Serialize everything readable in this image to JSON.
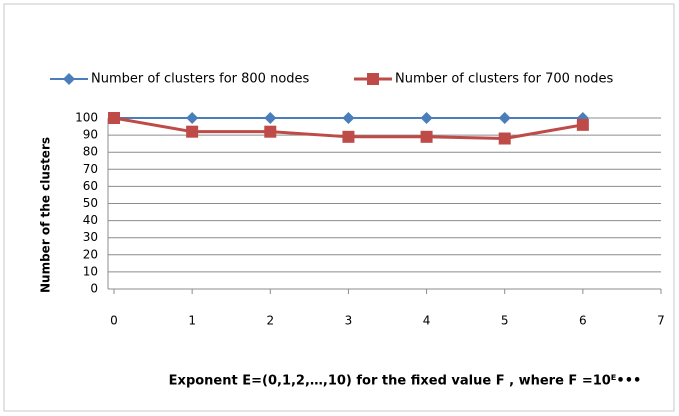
{
  "chart_data": {
    "type": "line",
    "y_label": "Number of the clusters",
    "x_label": "Exponent E=(0,1,2,…,10) for the fixed value F , where F =10ᴱ•••",
    "x": [
      0,
      1,
      2,
      3,
      4,
      5,
      6
    ],
    "series": [
      {
        "name": "Number of clusters for 800 nodes",
        "color": "#4a7ebb",
        "marker": "diamond",
        "values": [
          100,
          100,
          100,
          100,
          100,
          100,
          100
        ]
      },
      {
        "name": "Number of clusters for 700 nodes",
        "color": "#be4b48",
        "marker": "square",
        "values": [
          100,
          92,
          92,
          89,
          89,
          88,
          96
        ]
      }
    ],
    "xlim": [
      0,
      7
    ],
    "xticks": [
      0,
      1,
      2,
      3,
      4,
      5,
      6,
      7
    ],
    "ylim": [
      0,
      100
    ],
    "yticks": [
      0,
      10,
      20,
      30,
      40,
      50,
      60,
      70,
      80,
      90,
      100
    ],
    "grid": true,
    "legend": "top"
  }
}
